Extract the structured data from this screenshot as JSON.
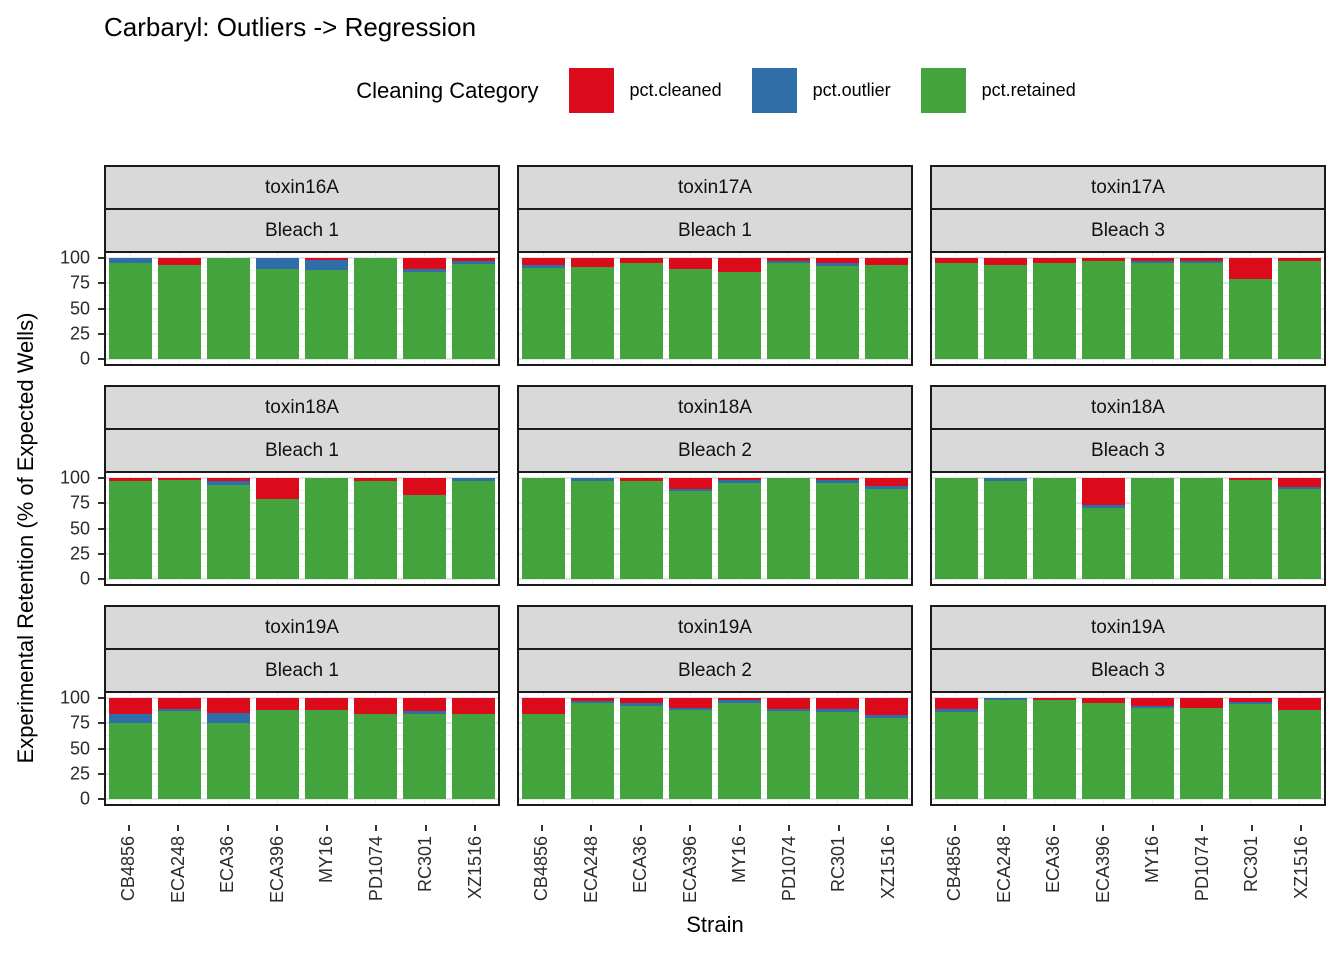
{
  "title": "Carbaryl: Outliers -> Regression",
  "legend": {
    "title": "Cleaning Category",
    "position": "top",
    "items": [
      {
        "label": "pct.cleaned",
        "color": "#DC0B1C"
      },
      {
        "label": "pct.outlier",
        "color": "#2F6EA9"
      },
      {
        "label": "pct.retained",
        "color": "#43A33C"
      }
    ]
  },
  "axes": {
    "y_title": "Experimental Retention (% of Expected Wells)",
    "x_title": "Strain",
    "y_ticks": [
      100,
      75,
      50,
      25,
      0
    ],
    "y_minor_ticks": [
      87.5,
      62.5,
      37.5,
      12.5
    ]
  },
  "chart_data": {
    "type": "bar",
    "stacked": true,
    "grid": true,
    "ylim": [
      0,
      100
    ],
    "categories": [
      "CB4856",
      "ECA248",
      "ECA36",
      "ECA396",
      "MY16",
      "PD1074",
      "RC301",
      "XZ1516"
    ],
    "series_order": [
      "pct.cleaned",
      "pct.outlier",
      "pct.retained"
    ],
    "panels": [
      {
        "toxin": "toxin16A",
        "bleach": "Bleach 1",
        "pct_cleaned": [
          0,
          7,
          0,
          0,
          2,
          0,
          11,
          3
        ],
        "pct_outlier": [
          5,
          0,
          0,
          11,
          10,
          0,
          3,
          3
        ],
        "pct_retained": [
          95,
          93,
          100,
          89,
          88,
          100,
          86,
          94
        ]
      },
      {
        "toxin": "toxin17A",
        "bleach": "Bleach 1",
        "pct_cleaned": [
          7,
          9,
          5,
          11,
          14,
          3,
          5,
          7
        ],
        "pct_outlier": [
          3,
          0,
          0,
          0,
          0,
          2,
          3,
          0
        ],
        "pct_retained": [
          90,
          91,
          95,
          89,
          86,
          95,
          92,
          93
        ]
      },
      {
        "toxin": "toxin17A",
        "bleach": "Bleach 3",
        "pct_cleaned": [
          5,
          7,
          5,
          3,
          3,
          3,
          21,
          3
        ],
        "pct_outlier": [
          0,
          0,
          0,
          0,
          2,
          2,
          0,
          0
        ],
        "pct_retained": [
          95,
          93,
          95,
          97,
          95,
          95,
          79,
          97
        ]
      },
      {
        "toxin": "toxin18A",
        "bleach": "Bleach 1",
        "pct_cleaned": [
          3,
          2,
          3,
          21,
          0,
          3,
          17,
          0
        ],
        "pct_outlier": [
          0,
          0,
          4,
          0,
          0,
          0,
          0,
          3
        ],
        "pct_retained": [
          97,
          98,
          93,
          79,
          100,
          97,
          83,
          97
        ]
      },
      {
        "toxin": "toxin18A",
        "bleach": "Bleach 2",
        "pct_cleaned": [
          0,
          0,
          3,
          11,
          2,
          0,
          2,
          8
        ],
        "pct_outlier": [
          0,
          3,
          0,
          2,
          3,
          0,
          3,
          3
        ],
        "pct_retained": [
          100,
          97,
          97,
          87,
          95,
          100,
          95,
          89
        ]
      },
      {
        "toxin": "toxin18A",
        "bleach": "Bleach 3",
        "pct_cleaned": [
          0,
          0,
          0,
          27,
          0,
          0,
          2,
          9
        ],
        "pct_outlier": [
          0,
          3,
          0,
          3,
          0,
          0,
          0,
          2
        ],
        "pct_retained": [
          100,
          97,
          100,
          70,
          100,
          100,
          98,
          89
        ]
      },
      {
        "toxin": "toxin19A",
        "bleach": "Bleach 1",
        "pct_cleaned": [
          16,
          11,
          15,
          12,
          12,
          16,
          13,
          16
        ],
        "pct_outlier": [
          9,
          2,
          10,
          0,
          0,
          0,
          3,
          0
        ],
        "pct_retained": [
          75,
          87,
          75,
          88,
          88,
          84,
          84,
          84
        ]
      },
      {
        "toxin": "toxin19A",
        "bleach": "Bleach 2",
        "pct_cleaned": [
          16,
          3,
          5,
          10,
          2,
          11,
          11,
          17
        ],
        "pct_outlier": [
          0,
          2,
          3,
          2,
          3,
          2,
          3,
          3
        ],
        "pct_retained": [
          84,
          95,
          92,
          88,
          95,
          87,
          86,
          80
        ]
      },
      {
        "toxin": "toxin19A",
        "bleach": "Bleach 3",
        "pct_cleaned": [
          11,
          0,
          2,
          5,
          8,
          10,
          4,
          12
        ],
        "pct_outlier": [
          3,
          2,
          0,
          0,
          2,
          0,
          2,
          0
        ],
        "pct_retained": [
          86,
          98,
          98,
          95,
          90,
          90,
          94,
          88
        ]
      }
    ]
  }
}
